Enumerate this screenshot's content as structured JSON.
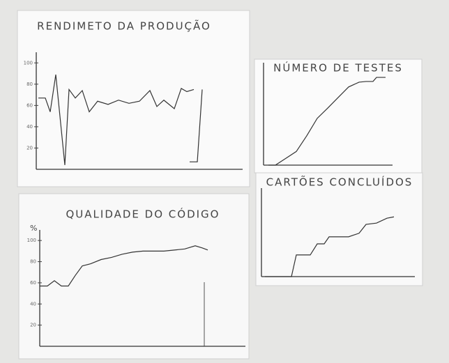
{
  "chart_data": [
    {
      "type": "line",
      "title": "RENDIMETO DA PRODUÇÃO",
      "x": [
        0.3,
        1.3,
        2,
        2.8,
        4.1,
        4.7,
        5.6,
        6.6,
        7.6,
        8.8,
        10.3,
        11.8,
        13.3,
        14.8,
        16.3,
        17.3,
        18.3,
        19.8,
        20.8,
        21.6,
        22.6,
        22,
        23.1,
        23.8
      ],
      "series": [
        {
          "color": "#333333",
          "values": [
            67,
            67,
            54,
            89,
            4,
            75,
            67,
            74,
            54,
            64,
            61,
            65,
            62,
            64,
            74,
            59,
            65,
            57,
            76,
            73,
            75,
            null,
            null,
            null
          ]
        },
        {
          "color": "#333333",
          "values": [
            null,
            null,
            null,
            null,
            null,
            null,
            null,
            null,
            null,
            null,
            null,
            null,
            null,
            null,
            null,
            null,
            null,
            null,
            null,
            null,
            null,
            7,
            7,
            75
          ]
        }
      ],
      "xlim": [
        0,
        29.6
      ],
      "ylim": [
        0,
        110
      ],
      "yticks": [
        20,
        40,
        60,
        80,
        100
      ]
    },
    {
      "type": "line",
      "title": "QUALIDADE DO CÓDIGO",
      "ylabel": "%",
      "x": [
        0,
        1.1,
        2.1,
        3.1,
        4.1,
        5.1,
        6.1,
        7.3,
        8.8,
        10.3,
        11.8,
        13.3,
        14.8,
        16.3,
        17.8,
        19.3,
        20.8,
        22.3,
        23.3,
        24.1
      ],
      "series": [
        {
          "color": "#333333",
          "values": [
            57,
            57,
            62,
            57,
            57,
            67,
            76,
            78,
            82,
            84,
            87,
            89,
            90,
            90,
            90,
            91,
            92,
            95,
            93,
            91
          ]
        }
      ],
      "xlim": [
        0,
        29.5
      ],
      "ylim": [
        0,
        110
      ],
      "yticks": [
        20,
        40,
        60,
        80,
        100
      ]
    },
    {
      "type": "line",
      "title": "NÚMERO DE TESTES",
      "x": [
        0.7,
        1.7,
        3.2,
        4.7,
        6.2,
        7.7,
        9.2,
        10.7,
        12.2,
        13.7,
        14.7,
        15.7,
        16.2,
        17.5
      ],
      "series": [
        {
          "color": "#333333",
          "values": [
            0,
            0,
            2,
            4,
            8.6,
            13.7,
            16.7,
            19.8,
            22.9,
            24.3,
            24.5,
            24.5,
            25.7,
            25.7
          ]
        }
      ],
      "xlim": [
        0,
        18.5
      ],
      "ylim": [
        0,
        30
      ]
    },
    {
      "type": "line",
      "title": "CARTÕES CONCLUÍDOS",
      "x": [
        0.5,
        4.3,
        5,
        7,
        8,
        9,
        9.7,
        12.5,
        14,
        15,
        16.5,
        18,
        19
      ],
      "series": [
        {
          "color": "#333333",
          "values": [
            0,
            0,
            4.9,
            4.9,
            7.4,
            7.4,
            9,
            9,
            9.8,
            11.8,
            12.1,
            13.2,
            13.5
          ]
        }
      ],
      "xlim": [
        0,
        22
      ],
      "ylim": [
        0,
        20
      ]
    }
  ]
}
